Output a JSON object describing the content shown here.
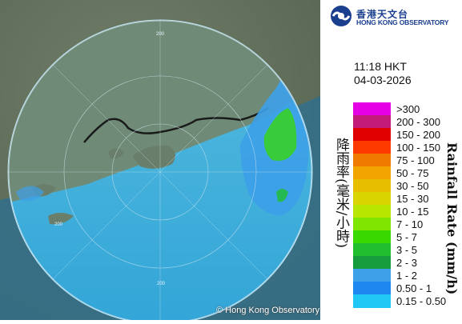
{
  "header": {
    "org_name_cn": "香港天文台",
    "org_name_en": "HONG KONG OBSERVATORY",
    "time": "11:18 HKT",
    "date": "04-03-2026"
  },
  "legend": {
    "unit_cn": "降雨率(毫米/小時)",
    "unit_en": "Rainfall Rate (mm/h)",
    "items": [
      {
        "range": ">300",
        "color": "#e600e6"
      },
      {
        "range": "200 - 300",
        "color": "#c21b7a"
      },
      {
        "range": "150 - 200",
        "color": "#e00000"
      },
      {
        "range": "100 - 150",
        "color": "#ff3a00"
      },
      {
        "range": "75 - 100",
        "color": "#f07a00"
      },
      {
        "range": "50 - 75",
        "color": "#f2a400"
      },
      {
        "range": "30 - 50",
        "color": "#e8bf00"
      },
      {
        "range": "15 - 30",
        "color": "#d9d400"
      },
      {
        "range": "10 - 15",
        "color": "#b8e600"
      },
      {
        "range": "7 - 10",
        "color": "#7ee600"
      },
      {
        "range": "5 - 7",
        "color": "#38d900"
      },
      {
        "range": "3 - 5",
        "color": "#1fbf30"
      },
      {
        "range": "2 - 3",
        "color": "#169c3c"
      },
      {
        "range": "1 - 2",
        "color": "#3da0e8"
      },
      {
        "range": "0.50 - 1",
        "color": "#1e88f0"
      },
      {
        "range": "0.15 - 0.50",
        "color": "#22c8f5"
      }
    ]
  },
  "map": {
    "copyright": "© Hong Kong Observatory",
    "ring_labels": [
      "200",
      "200",
      "200"
    ]
  }
}
